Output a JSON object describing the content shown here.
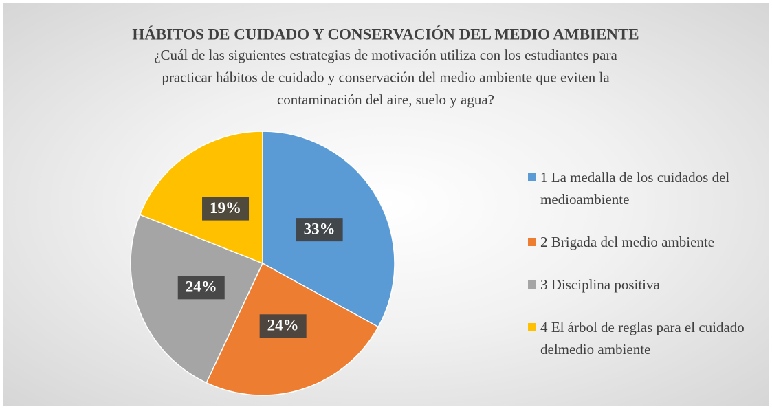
{
  "chart_data": {
    "type": "pie",
    "title": "HÁBITOS DE CUIDADO Y CONSERVACIÓN DEL MEDIO AMBIENTE",
    "subtitle": [
      "¿Cuál de las siguientes estrategias de motivación utiliza con los estudiantes para",
      "practicar hábitos de cuidado y conservación del medio ambiente que eviten la",
      "contaminación del aire, suelo y agua?"
    ],
    "categories": [
      "1 La medalla de los cuidados del medioambiente",
      "2 Brigada del medio ambiente",
      "3 Disciplina positiva",
      "4 El árbol de reglas para el cuidado delmedio ambiente"
    ],
    "values": [
      33,
      24,
      24,
      19
    ],
    "value_labels": [
      "33%",
      "24%",
      "24%",
      "19%"
    ],
    "colors": [
      "#5b9bd5",
      "#ed7d31",
      "#a5a5a5",
      "#ffc000"
    ],
    "legend": "right"
  }
}
